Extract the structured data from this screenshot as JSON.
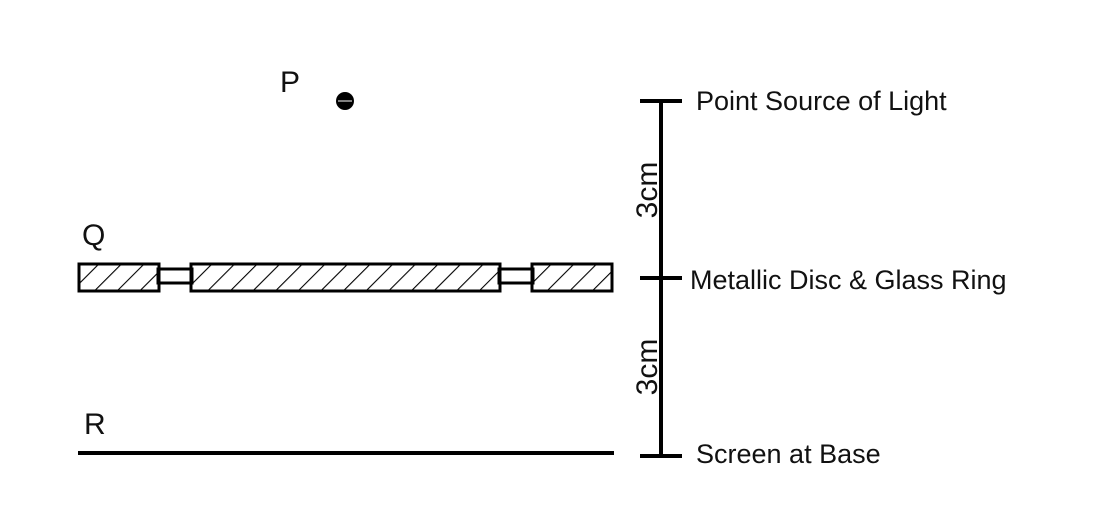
{
  "labels": {
    "p": "P",
    "q": "Q",
    "r": "R"
  },
  "annotations": {
    "source": "Point Source of Light",
    "disc": "Metallic Disc & Glass Ring",
    "screen": "Screen at Base"
  },
  "dimensions": {
    "upper": "3cm",
    "lower": "3cm"
  },
  "colors": {
    "ink": "#000000",
    "background": "#ffffff"
  }
}
